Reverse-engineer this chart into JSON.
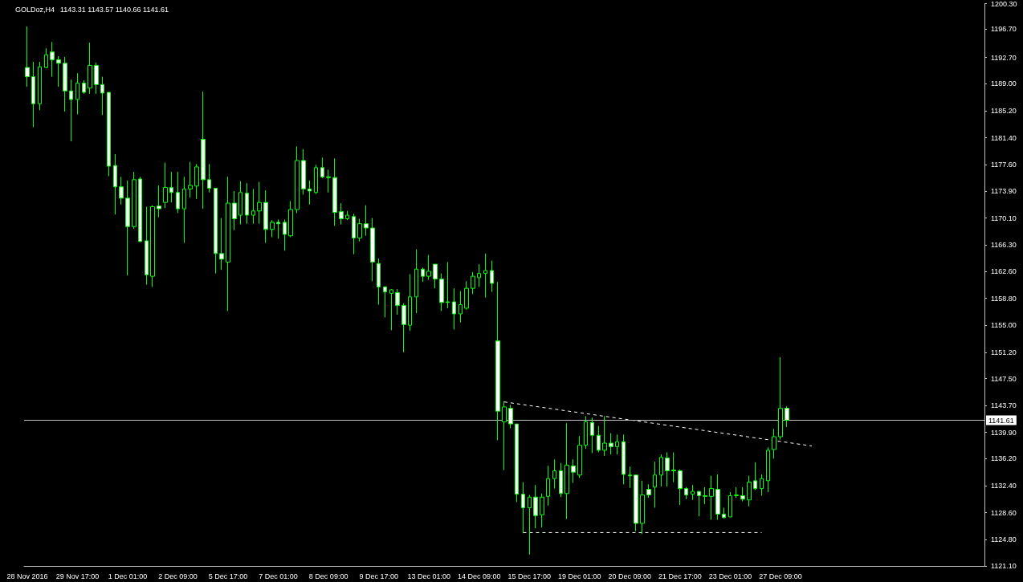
{
  "chart_data": {
    "type": "candlestick",
    "title": "GOLDoz,H4",
    "subtitle": "1143.31 1143.57 1140.66 1141.61",
    "color": "#00ff00",
    "categories": [
      "28 Nov 2016",
      null,
      null,
      null,
      null,
      null,
      null,
      null,
      "29 Nov 17:00",
      null,
      null,
      null,
      null,
      null,
      null,
      null,
      "1 Dec 01:00",
      null,
      null,
      null,
      null,
      null,
      null,
      null,
      "2 Dec 09:00",
      null,
      null,
      null,
      null,
      null,
      null,
      null,
      "5 Dec 17:00",
      null,
      null,
      null,
      null,
      null,
      null,
      null,
      "7 Dec 01:00",
      null,
      null,
      null,
      null,
      null,
      null,
      null,
      "8 Dec 09:00",
      null,
      null,
      null,
      null,
      null,
      null,
      null,
      "9 Dec 17:00",
      null,
      null,
      null,
      null,
      null,
      null,
      null,
      "13 Dec 01:00",
      null,
      null,
      null,
      null,
      null,
      null,
      null,
      "14 Dec 09:00",
      null,
      null,
      null,
      null,
      null,
      null,
      null,
      "15 Dec 17:00",
      null,
      null,
      null,
      null,
      null,
      null,
      null,
      "19 Dec 01:00",
      null,
      null,
      null,
      null,
      null,
      null,
      null,
      "20 Dec 09:00",
      null,
      null,
      null,
      null,
      null,
      null,
      null,
      "21 Dec 17:00",
      null,
      null,
      null,
      null,
      null,
      null,
      null,
      "23 Dec 01:00",
      null,
      null,
      null,
      null,
      null,
      null,
      null,
      "27 Dec 09:00",
      null,
      null,
      null,
      null,
      null,
      null,
      null,
      null,
      null,
      null,
      null,
      null,
      null,
      null,
      null,
      null,
      null,
      null,
      null,
      null,
      null,
      null,
      null,
      null,
      null,
      null,
      null,
      null,
      null,
      null,
      null,
      null
    ],
    "ohlc": [
      [
        1191.3,
        1197.1,
        1188.6,
        1190.0
      ],
      [
        1190.0,
        1192.1,
        1182.9,
        1186.2
      ],
      [
        1186.2,
        1192.1,
        1185.3,
        1191.4
      ],
      [
        1191.3,
        1194.0,
        1191.2,
        1193.1
      ],
      [
        1193.5,
        1194.9,
        1190.0,
        1192.4
      ],
      [
        1192.4,
        1192.9,
        1188.6,
        1191.9
      ],
      [
        1191.9,
        1192.8,
        1185.1,
        1188.0
      ],
      [
        1188.0,
        1189.6,
        1180.9,
        1186.8
      ],
      [
        1186.8,
        1190.5,
        1184.7,
        1189.1
      ],
      [
        1189.1,
        1189.5,
        1187.6,
        1187.8
      ],
      [
        1188.4,
        1194.8,
        1187.6,
        1191.6
      ],
      [
        1191.6,
        1192.0,
        1187.6,
        1188.9
      ],
      [
        1188.9,
        1190.0,
        1184.6,
        1187.7
      ],
      [
        1187.8,
        1187.8,
        1176.0,
        1177.4
      ],
      [
        1177.5,
        1179.1,
        1170.6,
        1174.5
      ],
      [
        1174.5,
        1175.9,
        1172.0,
        1172.9
      ],
      [
        1172.9,
        1175.4,
        1162.0,
        1168.9
      ],
      [
        1168.9,
        1176.6,
        1168.6,
        1175.5
      ],
      [
        1175.6,
        1175.9,
        1166.7,
        1166.8
      ],
      [
        1166.9,
        1171.7,
        1160.7,
        1162.1
      ],
      [
        1161.9,
        1171.9,
        1160.4,
        1171.7
      ],
      [
        1171.8,
        1174.7,
        1170.2,
        1171.4
      ],
      [
        1172.3,
        1177.9,
        1171.5,
        1174.4
      ],
      [
        1174.4,
        1176.6,
        1172.3,
        1173.7
      ],
      [
        1173.7,
        1176.6,
        1170.8,
        1171.4
      ],
      [
        1171.4,
        1175.9,
        1166.6,
        1174.2
      ],
      [
        1174.2,
        1178.0,
        1173.0,
        1174.7
      ],
      [
        1174.6,
        1177.7,
        1172.8,
        1177.3
      ],
      [
        1181.2,
        1187.9,
        1171.4,
        1175.5
      ],
      [
        1175.5,
        1177.7,
        1173.7,
        1174.3
      ],
      [
        1174.3,
        1174.3,
        1162.3,
        1165.1
      ],
      [
        1165.1,
        1170.1,
        1162.8,
        1164.3
      ],
      [
        1163.9,
        1175.9,
        1157.0,
        1172.2
      ],
      [
        1172.2,
        1173.9,
        1168.4,
        1170.0
      ],
      [
        1170.5,
        1175.3,
        1169.2,
        1173.7
      ],
      [
        1173.6,
        1175.0,
        1169.3,
        1170.5
      ],
      [
        1170.5,
        1174.2,
        1169.3,
        1171.1
      ],
      [
        1171.1,
        1175.2,
        1169.3,
        1172.3
      ],
      [
        1172.3,
        1174.0,
        1166.6,
        1168.5
      ],
      [
        1168.5,
        1169.8,
        1167.4,
        1169.5
      ],
      [
        1169.5,
        1169.9,
        1167.2,
        1169.3
      ],
      [
        1169.5,
        1169.9,
        1165.5,
        1167.8
      ],
      [
        1167.6,
        1172.5,
        1167.4,
        1171.3
      ],
      [
        1171.3,
        1180.2,
        1170.8,
        1178.2
      ],
      [
        1178.2,
        1179.8,
        1173.4,
        1174.2
      ],
      [
        1174.2,
        1175.4,
        1172.0,
        1173.9
      ],
      [
        1173.7,
        1177.6,
        1173.5,
        1177.2
      ],
      [
        1177.2,
        1178.6,
        1175.7,
        1175.9
      ],
      [
        1175.9,
        1176.9,
        1173.7,
        1175.8
      ],
      [
        1175.8,
        1178.5,
        1169.0,
        1170.9
      ],
      [
        1171.0,
        1172.2,
        1169.2,
        1170.0
      ],
      [
        1170.0,
        1171.1,
        1169.8,
        1170.5
      ],
      [
        1170.3,
        1170.7,
        1165.0,
        1167.3
      ],
      [
        1167.3,
        1170.0,
        1166.8,
        1169.3
      ],
      [
        1169.3,
        1171.9,
        1167.6,
        1168.7
      ],
      [
        1168.7,
        1170.1,
        1161.2,
        1163.9
      ],
      [
        1163.7,
        1164.4,
        1157.9,
        1160.4
      ],
      [
        1160.4,
        1160.5,
        1156.1,
        1159.7
      ],
      [
        1159.5,
        1160.1,
        1154.3,
        1160.0
      ],
      [
        1159.6,
        1160.1,
        1156.5,
        1157.8
      ],
      [
        1157.8,
        1158.1,
        1151.2,
        1155.1
      ],
      [
        1155.0,
        1162.2,
        1154.2,
        1159.0
      ],
      [
        1159.0,
        1165.7,
        1156.7,
        1162.9
      ],
      [
        1162.9,
        1163.1,
        1161.1,
        1161.9
      ],
      [
        1161.9,
        1164.9,
        1161.4,
        1162.6
      ],
      [
        1163.6,
        1163.6,
        1160.2,
        1161.5
      ],
      [
        1161.5,
        1162.3,
        1157.0,
        1158.2
      ],
      [
        1158.3,
        1163.9,
        1157.4,
        1158.2
      ],
      [
        1158.3,
        1160.2,
        1154.4,
        1156.6
      ],
      [
        1156.6,
        1159.8,
        1155.4,
        1157.9
      ],
      [
        1157.4,
        1161.2,
        1157.2,
        1160.2
      ],
      [
        1160.2,
        1162.5,
        1159.4,
        1161.9
      ],
      [
        1161.7,
        1163.6,
        1160.4,
        1162.3
      ],
      [
        1162.3,
        1165.1,
        1158.9,
        1162.7
      ],
      [
        1162.7,
        1164.1,
        1159.7,
        1160.9
      ],
      [
        1152.8,
        1161.1,
        1138.8,
        1142.9
      ],
      [
        1141.4,
        1144.3,
        1134.6,
        1143.5
      ],
      [
        1143.3,
        1143.8,
        1140.5,
        1141.1
      ],
      [
        1141.1,
        1141.1,
        1130.1,
        1131.2
      ],
      [
        1131.2,
        1132.9,
        1125.7,
        1129.3
      ],
      [
        1129.3,
        1131.1,
        1122.7,
        1130.8
      ],
      [
        1130.8,
        1132.5,
        1126.4,
        1128.2
      ],
      [
        1128.3,
        1131.3,
        1126.5,
        1130.8
      ],
      [
        1130.9,
        1135.2,
        1129.6,
        1133.4
      ],
      [
        1133.4,
        1136.1,
        1132.0,
        1134.5
      ],
      [
        1134.5,
        1135.6,
        1130.8,
        1131.3
      ],
      [
        1131.3,
        1141.2,
        1127.7,
        1135.3
      ],
      [
        1135.2,
        1136.1,
        1132.8,
        1134.3
      ],
      [
        1133.9,
        1139.4,
        1133.5,
        1138.1
      ],
      [
        1138.1,
        1142.2,
        1137.6,
        1141.4
      ],
      [
        1141.3,
        1142.0,
        1137.0,
        1139.5
      ],
      [
        1139.5,
        1140.8,
        1137.1,
        1137.4
      ],
      [
        1137.4,
        1142.2,
        1136.6,
        1138.4
      ],
      [
        1138.4,
        1139.8,
        1136.8,
        1137.9
      ],
      [
        1137.9,
        1139.6,
        1136.8,
        1138.6
      ],
      [
        1138.6,
        1139.6,
        1132.6,
        1134.0
      ],
      [
        1133.9,
        1135.1,
        1132.1,
        1133.8
      ],
      [
        1133.9,
        1133.9,
        1126.0,
        1127.1
      ],
      [
        1127.1,
        1133.1,
        1125.6,
        1131.1
      ],
      [
        1131.9,
        1132.6,
        1130.7,
        1131.1
      ],
      [
        1132.2,
        1135.8,
        1129.3,
        1133.9
      ],
      [
        1133.9,
        1136.8,
        1132.3,
        1136.4
      ],
      [
        1136.3,
        1137.1,
        1132.3,
        1134.5
      ],
      [
        1134.6,
        1137.1,
        1132.9,
        1134.5
      ],
      [
        1134.5,
        1134.7,
        1129.7,
        1132.0
      ],
      [
        1132.0,
        1132.2,
        1130.5,
        1131.1
      ],
      [
        1131.2,
        1132.5,
        1130.4,
        1131.6
      ],
      [
        1131.6,
        1131.6,
        1128.1,
        1131.0
      ],
      [
        1131.0,
        1132.2,
        1129.8,
        1130.9
      ],
      [
        1130.9,
        1133.8,
        1127.6,
        1132.0
      ],
      [
        1131.9,
        1134.0,
        1127.6,
        1128.4
      ],
      [
        1128.4,
        1129.3,
        1127.8,
        1127.9
      ],
      [
        1128.0,
        1131.5,
        1128.0,
        1131.0
      ],
      [
        1131.0,
        1132.2,
        1130.7,
        1131.1
      ],
      [
        1131.0,
        1132.2,
        1130.2,
        1130.5
      ],
      [
        1130.4,
        1133.8,
        1129.5,
        1132.9
      ],
      [
        1133.1,
        1135.7,
        1131.8,
        1132.0
      ],
      [
        1132.0,
        1134.0,
        1131.0,
        1133.4
      ],
      [
        1133.1,
        1137.8,
        1131.5,
        1137.4
      ],
      [
        1137.5,
        1140.4,
        1136.2,
        1139.3
      ],
      [
        1139.3,
        1150.5,
        1138.9,
        1143.3
      ],
      [
        1143.31,
        1143.57,
        1140.66,
        1141.61
      ],
      null,
      null,
      null,
      null,
      null,
      null,
      null,
      null,
      null,
      null,
      null,
      null,
      null,
      null,
      null,
      null,
      null,
      null,
      null,
      null,
      null,
      null,
      null,
      null,
      null,
      null,
      null,
      null,
      null,
      null,
      null
    ],
    "series": [
      {
        "type": "line",
        "color": "#ffffff",
        "line_style": "dashed",
        "values": [
          null,
          null,
          null,
          null,
          null,
          null,
          null,
          null,
          null,
          null,
          null,
          null,
          null,
          null,
          null,
          null,
          null,
          null,
          null,
          null,
          null,
          null,
          null,
          null,
          null,
          null,
          null,
          null,
          null,
          null,
          null,
          null,
          null,
          null,
          null,
          null,
          null,
          null,
          null,
          null,
          null,
          null,
          null,
          null,
          null,
          null,
          null,
          null,
          null,
          null,
          null,
          null,
          null,
          null,
          null,
          null,
          null,
          null,
          null,
          null,
          null,
          null,
          null,
          null,
          null,
          null,
          null,
          null,
          null,
          null,
          null,
          null,
          null,
          null,
          null,
          null,
          1144.2,
          null,
          null,
          null,
          null,
          null,
          null,
          null,
          null,
          null,
          null,
          null,
          null,
          null,
          null,
          null,
          null,
          null,
          null,
          null,
          null,
          null,
          null,
          null,
          null,
          null,
          null,
          null,
          null,
          null,
          null,
          null,
          null,
          null,
          null,
          null,
          null,
          null,
          null,
          null,
          null,
          null,
          null,
          null,
          null,
          null,
          null,
          null,
          null,
          1138.0,
          null,
          null,
          null,
          null,
          null,
          null,
          null,
          null,
          null,
          null,
          null,
          null,
          null,
          null,
          null,
          null,
          null,
          null,
          null,
          null,
          null,
          null,
          null,
          null,
          null,
          null,
          null
        ]
      },
      {
        "type": "line",
        "color": "#ffffff",
        "line_style": "dashed",
        "values": [
          null,
          null,
          null,
          null,
          null,
          null,
          null,
          null,
          null,
          null,
          null,
          null,
          null,
          null,
          null,
          null,
          null,
          null,
          null,
          null,
          null,
          null,
          null,
          null,
          null,
          null,
          null,
          null,
          null,
          null,
          null,
          null,
          null,
          null,
          null,
          null,
          null,
          null,
          null,
          null,
          null,
          null,
          null,
          null,
          null,
          null,
          null,
          null,
          null,
          null,
          null,
          null,
          null,
          null,
          null,
          null,
          null,
          null,
          null,
          null,
          null,
          null,
          null,
          null,
          null,
          null,
          null,
          null,
          null,
          null,
          null,
          null,
          null,
          null,
          null,
          null,
          null,
          null,
          null,
          1125.8,
          null,
          null,
          null,
          null,
          null,
          null,
          null,
          null,
          null,
          null,
          null,
          null,
          null,
          null,
          null,
          null,
          null,
          null,
          null,
          null,
          null,
          null,
          null,
          null,
          null,
          null,
          null,
          null,
          null,
          null,
          null,
          null,
          null,
          null,
          null,
          null,
          null,
          1125.8,
          null,
          null,
          null,
          null,
          null,
          null,
          null,
          null,
          null,
          null,
          null,
          null,
          null,
          null,
          null,
          null,
          null,
          null,
          null,
          null,
          null,
          null,
          null,
          null,
          null,
          null,
          null,
          null,
          null,
          null,
          null,
          null,
          null,
          null,
          null
        ]
      }
    ],
    "marker": "none",
    "ref_lines": [
      {
        "axis": "y",
        "value": 1141.61,
        "label": "1141.61",
        "color": "#c0c0c0",
        "line_style": "solid"
      }
    ],
    "ylim": [
      1121.1,
      1200.3
    ],
    "yticks": [
      {
        "value": 1200.3,
        "label": "1200.30"
      },
      {
        "value": 1196.7,
        "label": "1196.70"
      },
      {
        "value": 1192.7,
        "label": "1192.70"
      },
      {
        "value": 1189.0,
        "label": "1189.00"
      },
      {
        "value": 1185.2,
        "label": "1185.20"
      },
      {
        "value": 1181.4,
        "label": "1181.40"
      },
      {
        "value": 1177.6,
        "label": "1177.60"
      },
      {
        "value": 1173.9,
        "label": "1173.90"
      },
      {
        "value": 1170.1,
        "label": "1170.10"
      },
      {
        "value": 1166.3,
        "label": "1166.30"
      },
      {
        "value": 1162.6,
        "label": "1162.60"
      },
      {
        "value": 1158.8,
        "label": "1158.80"
      },
      {
        "value": 1155.0,
        "label": "1155.00"
      },
      {
        "value": 1151.2,
        "label": "1151.20"
      },
      {
        "value": 1147.5,
        "label": "1147.50"
      },
      {
        "value": 1143.7,
        "label": "1143.70"
      },
      {
        "value": 1139.9,
        "label": "1139.90"
      },
      {
        "value": 1136.2,
        "label": "1136.20"
      },
      {
        "value": 1132.4,
        "label": "1132.40"
      },
      {
        "value": 1128.6,
        "label": "1128.60"
      },
      {
        "value": 1124.8,
        "label": "1124.80"
      },
      {
        "value": 1121.1,
        "label": "1121.10"
      }
    ]
  }
}
